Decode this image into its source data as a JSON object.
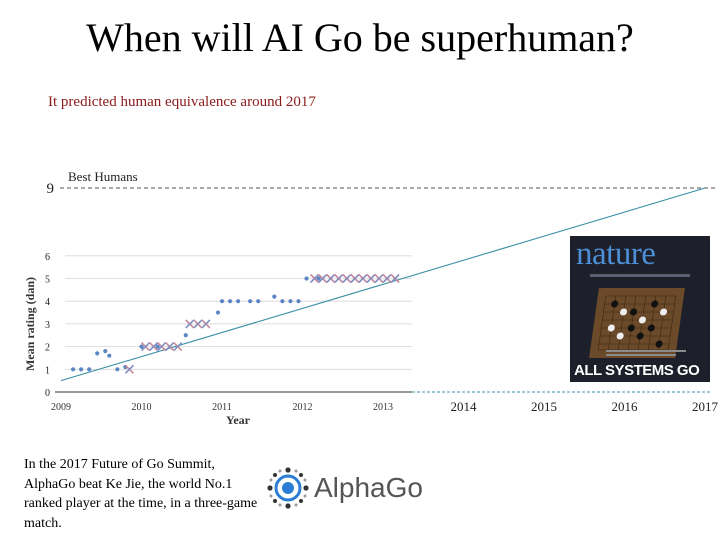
{
  "slide": {
    "title": "When will AI Go be superhuman?",
    "subtitle": "It predicted human equivalence around 2017",
    "caption": "In the 2017 Future of Go Summit, AlphaGo beat Ke Jie, the world No.1 ranked player at the time, in a three-game match.",
    "nature_cover": {
      "masthead": "nature",
      "headline": "ALL SYSTEMS GO"
    },
    "logo": {
      "text": "AlphaGo"
    }
  },
  "chart_data": {
    "type": "scatter",
    "title": "",
    "xlabel": "Year",
    "ylabel": "Mean rating (dan)",
    "xlim": [
      2009,
      2017
    ],
    "ylim": [
      0,
      9
    ],
    "x_ticks": [
      "2009",
      "2010",
      "2011",
      "2012",
      "2013",
      "2014",
      "2015",
      "2016",
      "2017"
    ],
    "y_ticks": [
      "0",
      "1",
      "2",
      "3",
      "4",
      "5",
      "6",
      "9"
    ],
    "grid": "horizontal",
    "reference_line": {
      "label": "Best Humans",
      "y": 9
    },
    "series": [
      {
        "marker": "dot",
        "points": [
          [
            2009.15,
            1
          ],
          [
            2009.25,
            1
          ],
          [
            2009.35,
            1
          ],
          [
            2009.45,
            1.7
          ],
          [
            2009.55,
            1.8
          ],
          [
            2009.6,
            1.6
          ],
          [
            2009.7,
            1
          ],
          [
            2009.8,
            1.1
          ],
          [
            2010.0,
            2
          ],
          [
            2010.2,
            2
          ],
          [
            2010.55,
            2.5
          ],
          [
            2010.95,
            3.5
          ],
          [
            2011.0,
            4
          ],
          [
            2011.1,
            4
          ],
          [
            2011.2,
            4
          ],
          [
            2011.35,
            4
          ],
          [
            2011.45,
            4
          ],
          [
            2011.65,
            4.2
          ],
          [
            2011.75,
            4
          ],
          [
            2011.85,
            4
          ],
          [
            2011.95,
            4
          ],
          [
            2012.05,
            5
          ],
          [
            2012.2,
            5
          ]
        ]
      },
      {
        "marker": "cross",
        "points": [
          [
            2009.85,
            1
          ],
          [
            2010.05,
            2
          ],
          [
            2010.15,
            2
          ],
          [
            2010.25,
            2
          ],
          [
            2010.35,
            2
          ],
          [
            2010.45,
            2
          ],
          [
            2010.6,
            3
          ],
          [
            2010.7,
            3
          ],
          [
            2010.8,
            3
          ],
          [
            2012.15,
            5
          ],
          [
            2012.25,
            5
          ],
          [
            2012.35,
            5
          ],
          [
            2012.45,
            5
          ],
          [
            2012.55,
            5
          ],
          [
            2012.65,
            5
          ],
          [
            2012.75,
            5
          ],
          [
            2012.85,
            5
          ],
          [
            2012.95,
            5
          ],
          [
            2013.05,
            5
          ],
          [
            2013.15,
            5
          ]
        ]
      }
    ],
    "trend_line": {
      "from": [
        2009.0,
        0.5
      ],
      "to": [
        2017.0,
        9
      ]
    },
    "colors": {
      "dot": "#5b86c4",
      "cross": "#c9889a",
      "trend": "#3b8fa6",
      "grid": "#d6d6d6",
      "axis": "#333333"
    }
  }
}
